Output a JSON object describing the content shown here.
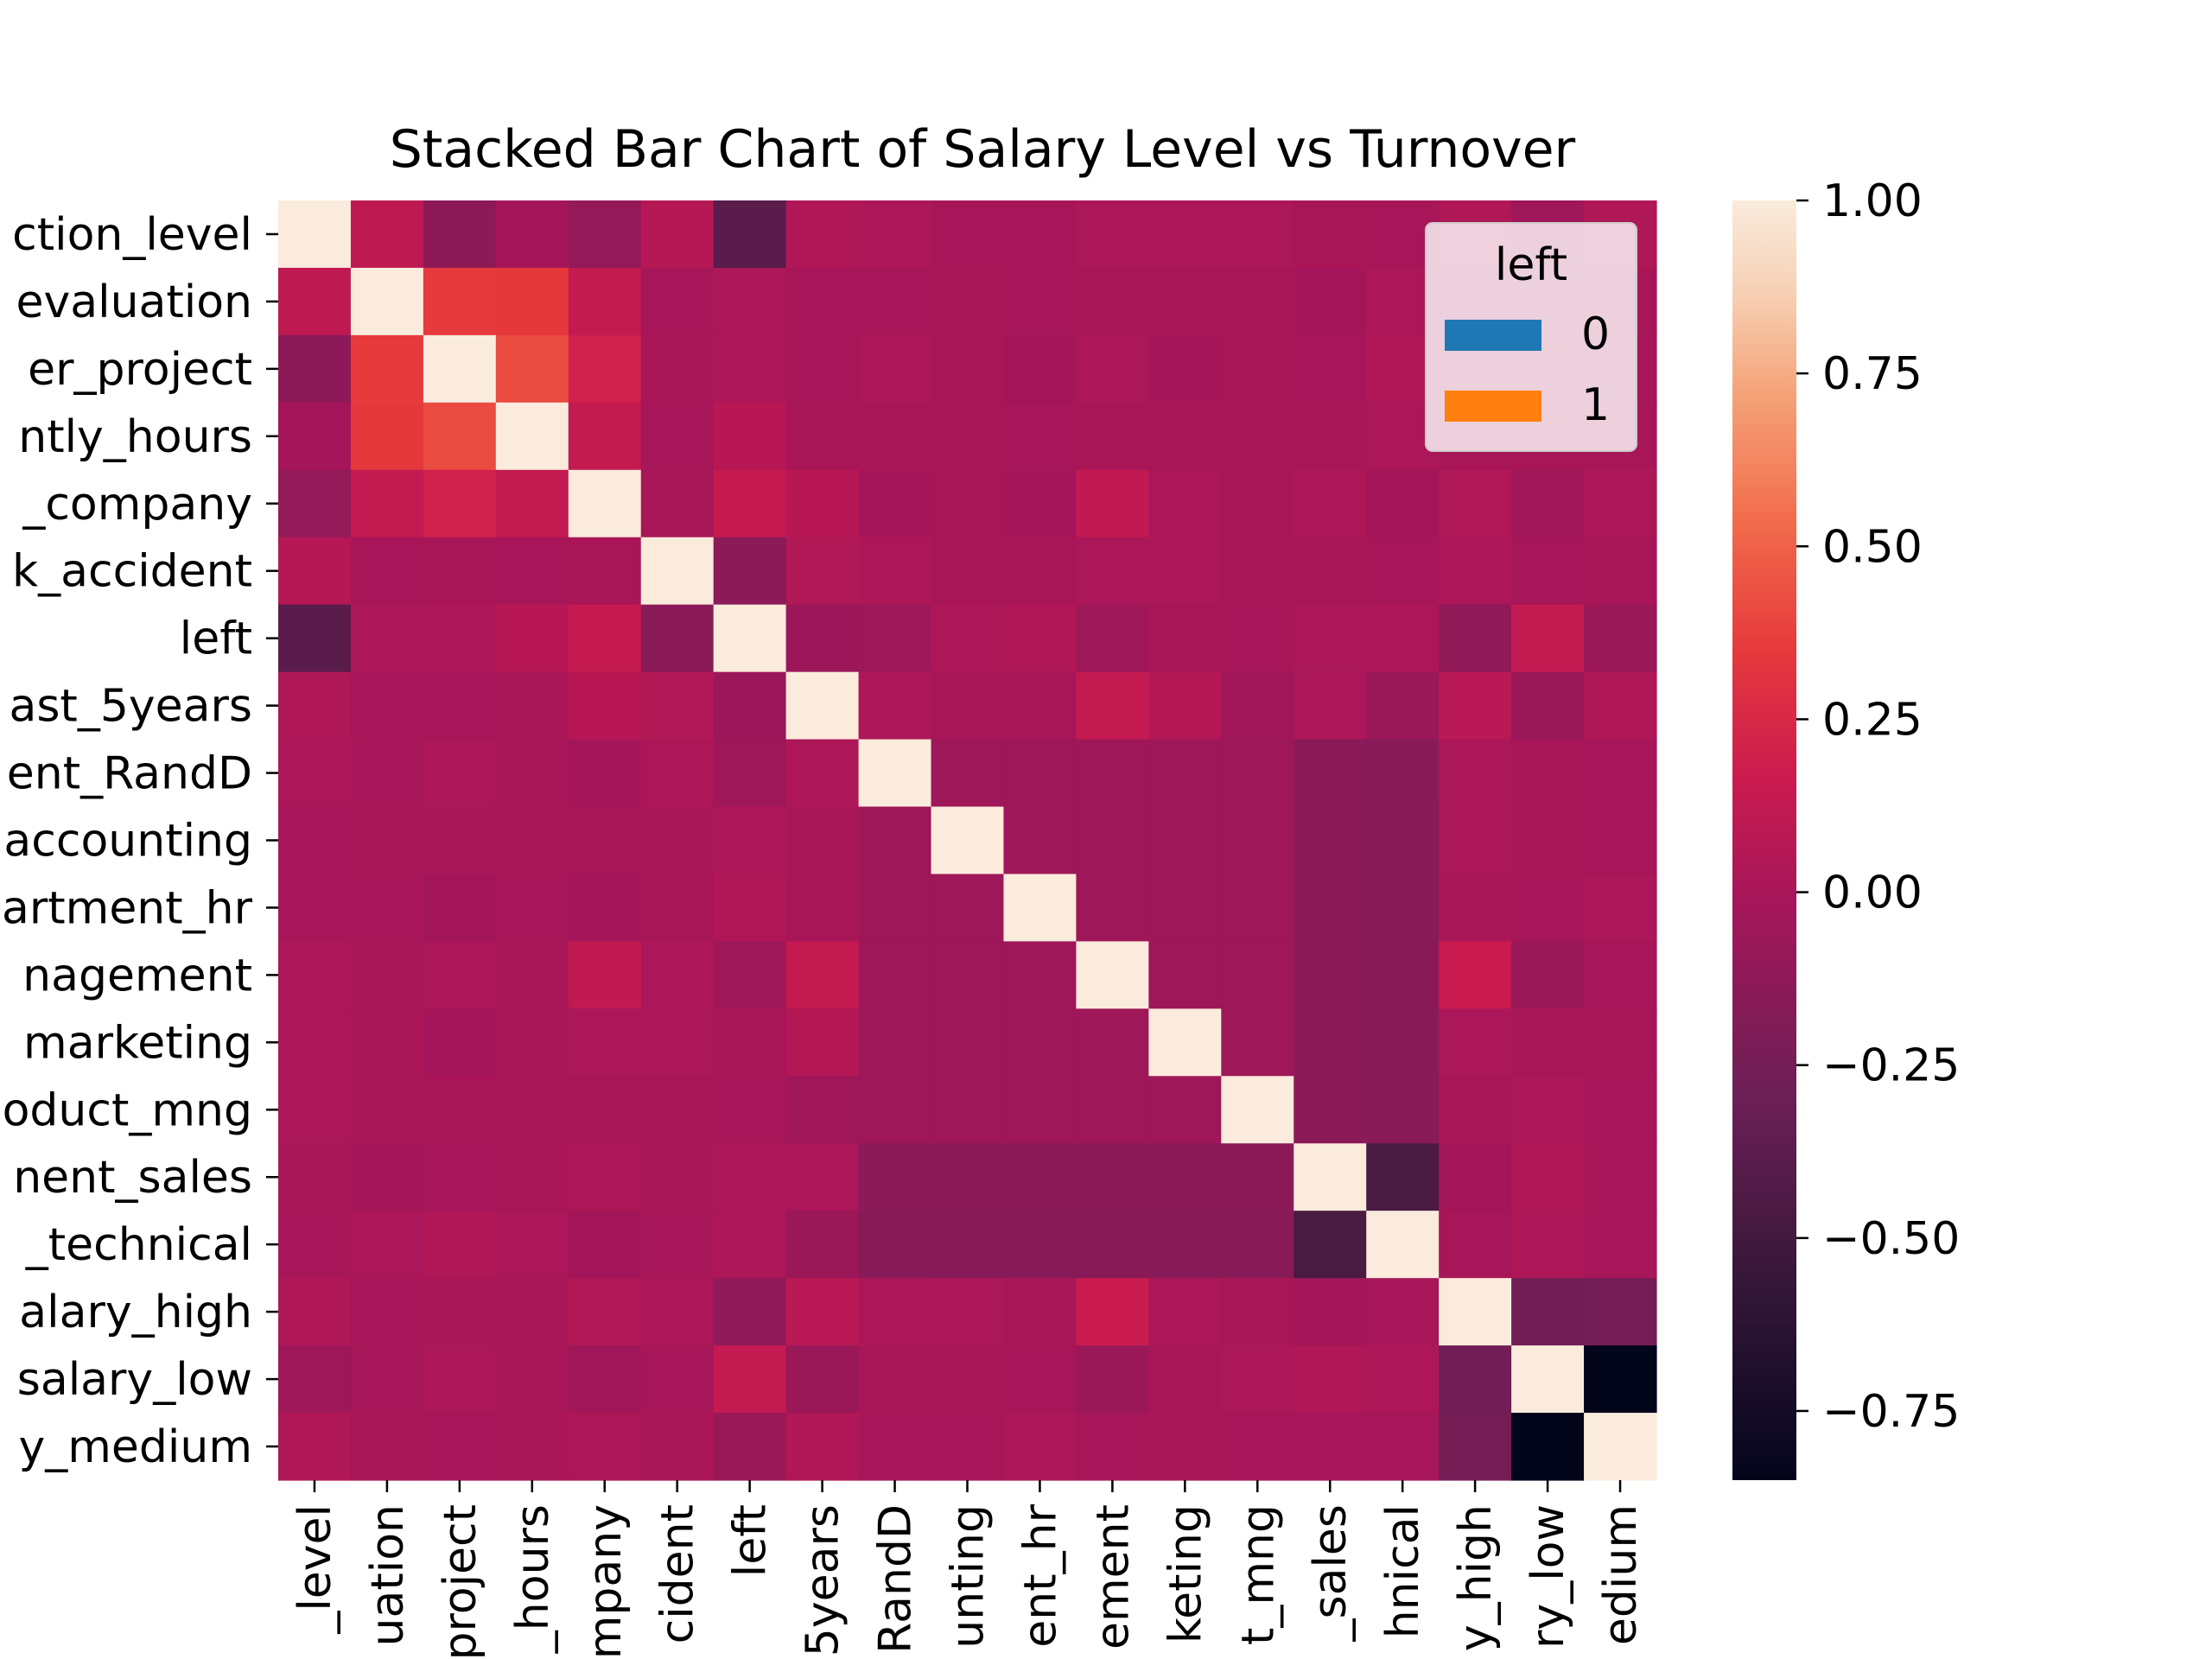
{
  "chart_data": {
    "type": "heatmap",
    "title": "Stacked Bar Chart of Salary Level vs Turnover",
    "xlabel": "",
    "ylabel": "",
    "row_labels": [
      "ction_level",
      "evaluation",
      "er_project",
      "ntly_hours",
      "_company",
      "k_accident",
      "left",
      "ast_5years",
      "ent_RandD",
      "accounting",
      "artment_hr",
      "nagement",
      "marketing",
      "oduct_mng",
      "nent_sales",
      "_technical",
      "alary_high",
      "salary_low",
      "y_medium"
    ],
    "col_labels": [
      "_level",
      "uation",
      "project",
      "_hours",
      "mpany",
      "cident",
      "left",
      "5years",
      "RandD",
      "unting",
      "ent_hr",
      "ement",
      "keting",
      "t_mng",
      "_sales",
      "hnical",
      "y_high",
      "ry_low",
      "edium"
    ],
    "values": [
      [
        1.0,
        0.11,
        -0.14,
        -0.02,
        -0.1,
        0.06,
        -0.39,
        0.03,
        0.01,
        -0.01,
        -0.01,
        0.01,
        0.01,
        0.01,
        0.0,
        -0.01,
        0.03,
        -0.05,
        0.03
      ],
      [
        0.11,
        1.0,
        0.35,
        0.34,
        0.13,
        -0.01,
        0.01,
        -0.01,
        -0.01,
        0.0,
        -0.01,
        0.0,
        -0.0,
        0.0,
        -0.02,
        0.01,
        -0.01,
        -0.01,
        0.0
      ],
      [
        -0.14,
        0.35,
        1.0,
        0.42,
        0.2,
        -0.0,
        0.02,
        -0.01,
        0.01,
        0.0,
        -0.03,
        0.01,
        -0.02,
        0.0,
        -0.01,
        0.03,
        -0.0,
        0.01,
        -0.01
      ],
      [
        -0.02,
        0.34,
        0.42,
        1.0,
        0.13,
        -0.01,
        0.07,
        -0.0,
        0.0,
        0.0,
        -0.01,
        0.0,
        -0.0,
        0.0,
        -0.0,
        0.01,
        -0.0,
        0.0,
        -0.0
      ],
      [
        -0.1,
        0.13,
        0.2,
        0.13,
        1.0,
        0.0,
        0.14,
        0.07,
        -0.02,
        0.0,
        -0.02,
        0.12,
        0.01,
        0.0,
        0.02,
        -0.03,
        0.04,
        -0.04,
        0.02
      ],
      [
        0.06,
        -0.01,
        -0.0,
        -0.01,
        0.0,
        1.0,
        -0.15,
        0.04,
        0.02,
        0.0,
        -0.0,
        0.01,
        0.01,
        0.0,
        0.0,
        -0.01,
        0.01,
        -0.01,
        0.0
      ],
      [
        -0.39,
        0.01,
        0.02,
        0.07,
        0.14,
        -0.15,
        1.0,
        -0.06,
        -0.05,
        0.02,
        0.03,
        -0.05,
        0.0,
        -0.01,
        0.01,
        0.02,
        -0.12,
        0.13,
        -0.07
      ],
      [
        0.03,
        -0.01,
        -0.01,
        -0.0,
        0.07,
        0.04,
        -0.06,
        1.0,
        0.02,
        0.0,
        -0.0,
        0.13,
        0.05,
        -0.04,
        0.01,
        -0.07,
        0.08,
        -0.08,
        0.03
      ],
      [
        0.01,
        -0.01,
        0.01,
        0.0,
        -0.02,
        0.02,
        -0.05,
        0.02,
        1.0,
        -0.05,
        -0.05,
        -0.05,
        -0.05,
        -0.05,
        -0.15,
        -0.16,
        0.01,
        0.0,
        -0.01
      ],
      [
        -0.01,
        0.0,
        0.0,
        0.0,
        0.0,
        0.0,
        0.02,
        0.0,
        -0.05,
        1.0,
        -0.05,
        -0.05,
        -0.05,
        -0.05,
        -0.15,
        -0.17,
        0.01,
        -0.0,
        -0.01
      ],
      [
        -0.01,
        -0.01,
        -0.03,
        -0.01,
        -0.02,
        -0.0,
        0.03,
        -0.0,
        -0.05,
        -0.05,
        1.0,
        -0.05,
        -0.05,
        -0.05,
        -0.15,
        -0.16,
        -0.0,
        -0.01,
        0.01
      ],
      [
        0.01,
        0.0,
        0.01,
        0.0,
        0.12,
        0.01,
        -0.05,
        0.13,
        -0.05,
        -0.05,
        -0.05,
        1.0,
        -0.05,
        -0.05,
        -0.15,
        -0.16,
        0.16,
        -0.07,
        -0.01
      ],
      [
        0.01,
        -0.0,
        -0.02,
        -0.0,
        0.01,
        0.01,
        0.0,
        0.05,
        -0.05,
        -0.05,
        -0.05,
        -0.05,
        1.0,
        -0.05,
        -0.15,
        -0.16,
        0.01,
        0.0,
        -0.0
      ],
      [
        0.01,
        0.0,
        0.0,
        0.0,
        0.0,
        0.0,
        -0.01,
        -0.04,
        -0.05,
        -0.05,
        -0.05,
        -0.05,
        -0.05,
        1.0,
        -0.15,
        -0.16,
        0.0,
        0.01,
        -0.01
      ],
      [
        0.0,
        -0.02,
        -0.01,
        -0.0,
        0.02,
        0.0,
        0.01,
        0.01,
        -0.15,
        -0.15,
        -0.15,
        -0.15,
        -0.15,
        -0.15,
        1.0,
        -0.47,
        -0.03,
        0.03,
        -0.01
      ],
      [
        -0.01,
        0.01,
        0.03,
        0.01,
        -0.03,
        -0.01,
        0.02,
        -0.07,
        -0.16,
        -0.17,
        -0.16,
        -0.16,
        -0.16,
        -0.16,
        -0.47,
        1.0,
        -0.01,
        0.02,
        -0.01
      ],
      [
        0.03,
        -0.01,
        -0.0,
        -0.0,
        0.04,
        0.01,
        -0.12,
        0.08,
        0.01,
        0.01,
        -0.0,
        0.16,
        0.01,
        0.0,
        -0.03,
        -0.01,
        1.0,
        -0.27,
        -0.25
      ],
      [
        -0.05,
        -0.01,
        0.01,
        0.0,
        -0.04,
        -0.01,
        0.13,
        -0.08,
        0.0,
        -0.0,
        -0.01,
        -0.07,
        0.0,
        0.01,
        0.03,
        0.02,
        -0.27,
        1.0,
        -0.85
      ],
      [
        0.03,
        0.0,
        -0.01,
        -0.0,
        0.02,
        0.0,
        -0.07,
        0.03,
        -0.01,
        -0.01,
        0.01,
        -0.01,
        -0.0,
        -0.01,
        -0.01,
        -0.01,
        -0.25,
        -0.85,
        1.0
      ]
    ],
    "vmin": -0.85,
    "vmax": 1.0,
    "colorbar_ticks": [
      "1.00",
      "0.75",
      "0.50",
      "0.25",
      "0.00",
      "−0.25",
      "−0.50",
      "−0.75"
    ],
    "colorbar_tick_values": [
      1.0,
      0.75,
      0.5,
      0.25,
      0.0,
      -0.25,
      -0.5,
      -0.75
    ],
    "legend": {
      "title": "left",
      "placement": "top-right",
      "entries": [
        {
          "label": "0",
          "color": "#1f77b4"
        },
        {
          "label": "1",
          "color": "#ff7f0e"
        }
      ]
    },
    "colormap": "rocket"
  }
}
